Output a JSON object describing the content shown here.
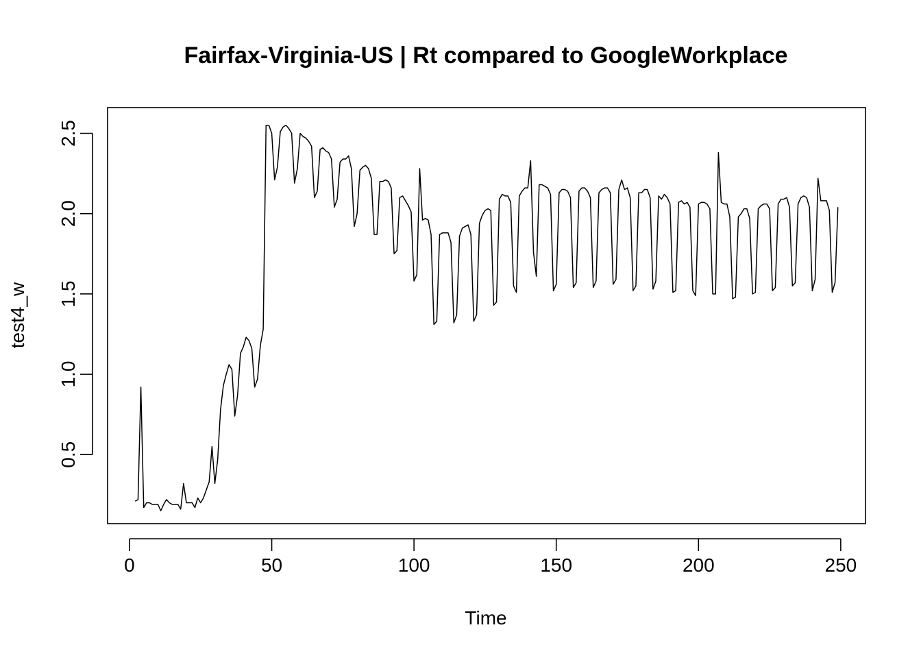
{
  "chart_data": {
    "type": "line",
    "title": "Fairfax-Virginia-US | Rt compared to GoogleWorkplace",
    "xlabel": "Time",
    "ylabel": "test4_w",
    "xlim": [
      -7.7,
      258.7
    ],
    "ylim": [
      0.07,
      2.66
    ],
    "x_ticks": [
      0,
      50,
      100,
      150,
      200,
      250
    ],
    "x_tick_labels": [
      "0",
      "50",
      "100",
      "150",
      "200",
      "250"
    ],
    "y_ticks": [
      0.5,
      1.0,
      1.5,
      2.0,
      2.5
    ],
    "y_tick_labels": [
      "0.5",
      "1.0",
      "1.5",
      "2.0",
      "2.5"
    ],
    "grid": false,
    "legend": "none",
    "line_color": "#000000",
    "x_start": 2,
    "series": [
      {
        "values": [
          0.21,
          0.22,
          0.92,
          0.17,
          0.2,
          0.2,
          0.19,
          0.19,
          0.19,
          0.15,
          0.19,
          0.22,
          0.2,
          0.19,
          0.19,
          0.19,
          0.16,
          0.32,
          0.2,
          0.2,
          0.2,
          0.17,
          0.23,
          0.2,
          0.23,
          0.28,
          0.33,
          0.55,
          0.32,
          0.47,
          0.78,
          0.93,
          1.0,
          1.06,
          1.03,
          0.74,
          0.87,
          1.13,
          1.17,
          1.23,
          1.21,
          1.16,
          0.92,
          0.97,
          1.18,
          1.28,
          2.55,
          2.55,
          2.5,
          2.21,
          2.29,
          2.51,
          2.54,
          2.55,
          2.53,
          2.5,
          2.19,
          2.28,
          2.5,
          2.48,
          2.47,
          2.45,
          2.42,
          2.1,
          2.14,
          2.4,
          2.41,
          2.39,
          2.38,
          2.34,
          2.04,
          2.09,
          2.32,
          2.34,
          2.34,
          2.36,
          2.28,
          1.92,
          2.0,
          2.27,
          2.29,
          2.3,
          2.28,
          2.22,
          1.87,
          1.87,
          2.2,
          2.2,
          2.21,
          2.2,
          2.16,
          1.75,
          1.77,
          2.1,
          2.11,
          2.08,
          2.05,
          2.01,
          1.58,
          1.62,
          2.28,
          1.96,
          1.97,
          1.96,
          1.87,
          1.31,
          1.33,
          1.87,
          1.88,
          1.88,
          1.88,
          1.82,
          1.32,
          1.37,
          1.86,
          1.91,
          1.92,
          1.93,
          1.87,
          1.33,
          1.37,
          1.94,
          1.99,
          2.02,
          2.03,
          2.02,
          1.43,
          1.45,
          2.09,
          2.12,
          2.11,
          2.11,
          2.07,
          1.55,
          1.51,
          2.11,
          2.14,
          2.16,
          2.16,
          2.33,
          1.76,
          1.61,
          2.18,
          2.18,
          2.17,
          2.16,
          2.12,
          1.52,
          1.56,
          2.13,
          2.15,
          2.15,
          2.14,
          2.1,
          1.54,
          1.57,
          2.14,
          2.16,
          2.16,
          2.14,
          2.1,
          1.54,
          1.58,
          2.13,
          2.15,
          2.16,
          2.16,
          2.13,
          1.56,
          1.59,
          2.15,
          2.21,
          2.15,
          2.16,
          2.1,
          1.52,
          1.55,
          2.13,
          2.13,
          2.15,
          2.15,
          2.1,
          1.53,
          1.58,
          2.11,
          2.09,
          2.12,
          2.1,
          2.06,
          1.51,
          1.52,
          2.07,
          2.08,
          2.06,
          2.07,
          2.04,
          1.52,
          1.49,
          2.06,
          2.07,
          2.07,
          2.06,
          2.03,
          1.5,
          1.5,
          2.38,
          2.07,
          2.06,
          2.06,
          1.98,
          1.47,
          1.48,
          1.98,
          2.0,
          2.03,
          2.03,
          1.97,
          1.5,
          1.51,
          2.03,
          2.05,
          2.06,
          2.06,
          2.03,
          1.52,
          1.54,
          2.06,
          2.09,
          2.09,
          2.1,
          2.04,
          1.55,
          1.57,
          2.06,
          2.1,
          2.11,
          2.1,
          2.04,
          1.52,
          1.59,
          2.22,
          2.08,
          2.08,
          2.08,
          2.02,
          1.51,
          1.57,
          2.04
        ]
      }
    ]
  }
}
